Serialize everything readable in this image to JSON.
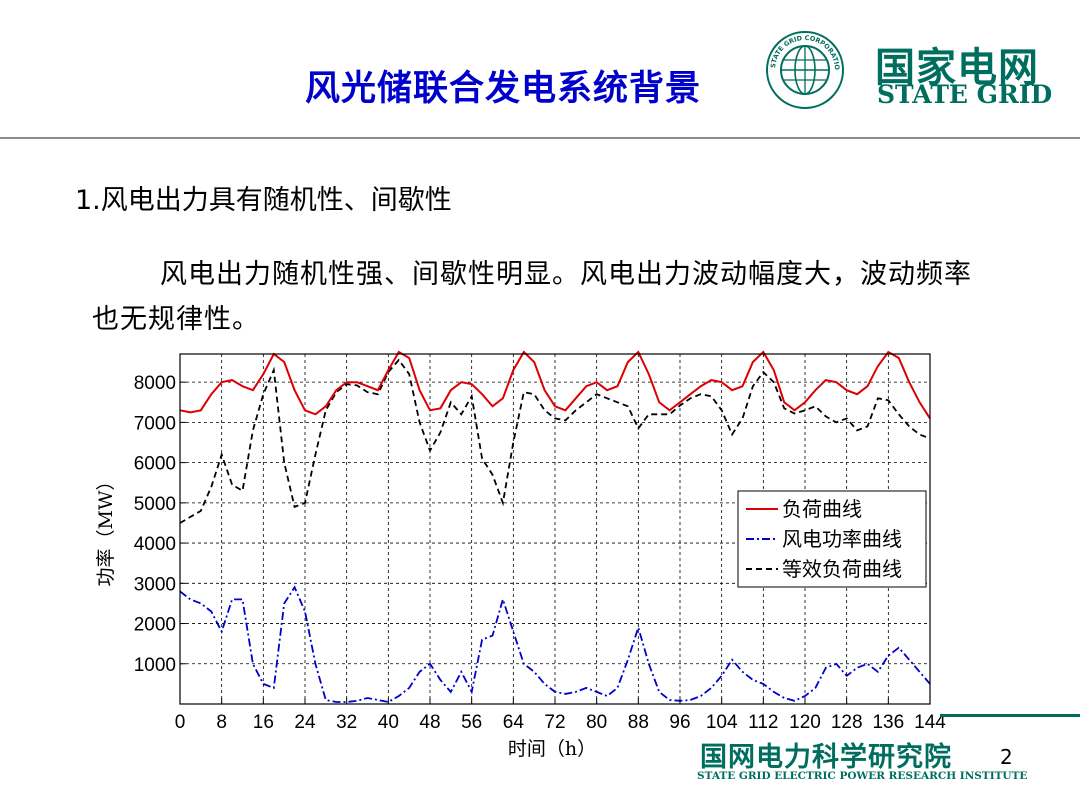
{
  "slide": {
    "title": "风光储联合发电系统背景",
    "heading": "1.风电出力具有随机性、间歇性",
    "paragraph": "风电出力随机性强、间歇性明显。风电出力波动幅度大，波动频率也无规律性。",
    "page_number": "2"
  },
  "logo": {
    "name_cn": "国家电网",
    "name_en": "STATE GRID",
    "seal_text": "STATE GRID CORPORATION OF CHINA",
    "brand_color": "#006e5f"
  },
  "footer": {
    "institute_cn": "国网电力科学研究院",
    "institute_en": "STATE GRID ELECTRIC POWER RESEARCH INSTITUTE"
  },
  "chart_data": {
    "type": "line",
    "xlabel": "时间（h）",
    "ylabel": "功率（MW）",
    "xlim": [
      0,
      144
    ],
    "ylim": [
      0,
      8000
    ],
    "xticks": [
      0,
      8,
      16,
      24,
      32,
      40,
      48,
      56,
      64,
      72,
      80,
      88,
      96,
      104,
      112,
      120,
      128,
      136,
      144
    ],
    "yticks": [
      1000,
      2000,
      3000,
      4000,
      5000,
      6000,
      7000,
      8000
    ],
    "grid": true,
    "legend_position": "right",
    "series": [
      {
        "name": "负荷曲线",
        "color": "#dd0000",
        "style": "solid",
        "x": [
          0,
          2,
          4,
          6,
          8,
          10,
          12,
          14,
          16,
          18,
          20,
          22,
          24,
          26,
          28,
          30,
          32,
          34,
          36,
          38,
          40,
          42,
          44,
          46,
          48,
          50,
          52,
          54,
          56,
          58,
          60,
          62,
          64,
          66,
          68,
          70,
          72,
          74,
          76,
          78,
          80,
          82,
          84,
          86,
          88,
          90,
          92,
          94,
          96,
          98,
          100,
          102,
          104,
          106,
          108,
          110,
          112,
          114,
          116,
          118,
          120,
          122,
          124,
          126,
          128,
          130,
          132,
          134,
          136,
          138,
          140,
          142,
          144
        ],
        "values": [
          7300,
          7250,
          7300,
          7700,
          8000,
          8050,
          7900,
          7800,
          8200,
          8700,
          8500,
          7800,
          7300,
          7200,
          7400,
          7800,
          8000,
          8000,
          7900,
          7800,
          8300,
          8750,
          8600,
          7800,
          7300,
          7350,
          7800,
          8000,
          7950,
          7700,
          7400,
          7600,
          8300,
          8750,
          8500,
          7800,
          7400,
          7300,
          7600,
          7900,
          8000,
          7800,
          7900,
          8500,
          8750,
          8200,
          7500,
          7300,
          7500,
          7700,
          7900,
          8050,
          8000,
          7800,
          7900,
          8500,
          8750,
          8300,
          7500,
          7300,
          7500,
          7800,
          8050,
          8000,
          7800,
          7700,
          7900,
          8400,
          8750,
          8600,
          8000,
          7500,
          7100
        ]
      },
      {
        "name": "风电功率曲线",
        "color": "#0000cc",
        "style": "dash-dot",
        "x": [
          0,
          2,
          4,
          6,
          8,
          10,
          12,
          14,
          16,
          18,
          20,
          22,
          24,
          26,
          28,
          30,
          32,
          34,
          36,
          38,
          40,
          42,
          44,
          46,
          48,
          50,
          52,
          54,
          56,
          58,
          60,
          62,
          64,
          66,
          68,
          70,
          72,
          74,
          76,
          78,
          80,
          82,
          84,
          86,
          88,
          90,
          92,
          94,
          96,
          98,
          100,
          102,
          104,
          106,
          108,
          110,
          112,
          114,
          116,
          118,
          120,
          122,
          124,
          126,
          128,
          130,
          132,
          134,
          136,
          138,
          140,
          142,
          144
        ],
        "values": [
          2800,
          2600,
          2500,
          2300,
          1800,
          2600,
          2600,
          1000,
          500,
          400,
          2500,
          2900,
          2300,
          1000,
          100,
          50,
          50,
          80,
          150,
          100,
          50,
          200,
          400,
          800,
          1000,
          600,
          300,
          800,
          300,
          1600,
          1700,
          2600,
          1800,
          1000,
          800,
          500,
          300,
          250,
          300,
          400,
          300,
          200,
          400,
          1100,
          1900,
          1000,
          300,
          100,
          80,
          100,
          200,
          400,
          700,
          1100,
          800,
          600,
          500,
          300,
          150,
          80,
          200,
          400,
          900,
          1000,
          700,
          900,
          1000,
          800,
          1200,
          1400,
          1100,
          800,
          500
        ]
      },
      {
        "name": "等效负荷曲线",
        "color": "#000000",
        "style": "dashed",
        "x": [
          0,
          2,
          4,
          6,
          8,
          10,
          12,
          14,
          16,
          18,
          20,
          22,
          24,
          26,
          28,
          30,
          32,
          34,
          36,
          38,
          40,
          42,
          44,
          46,
          48,
          50,
          52,
          54,
          56,
          58,
          60,
          62,
          64,
          66,
          68,
          70,
          72,
          74,
          76,
          78,
          80,
          82,
          84,
          86,
          88,
          90,
          92,
          94,
          96,
          98,
          100,
          102,
          104,
          106,
          108,
          110,
          112,
          114,
          116,
          118,
          120,
          122,
          124,
          126,
          128,
          130,
          132,
          134,
          136,
          138,
          140,
          142,
          144
        ],
        "values": [
          4500,
          4650,
          4800,
          5400,
          6200,
          5450,
          5300,
          6800,
          7700,
          8300,
          6000,
          4900,
          5000,
          6200,
          7300,
          7750,
          7950,
          7920,
          7750,
          7700,
          8250,
          8550,
          8200,
          7000,
          6300,
          6750,
          7500,
          7200,
          7650,
          6100,
          5700,
          5000,
          6500,
          7750,
          7700,
          7300,
          7100,
          7050,
          7300,
          7500,
          7700,
          7600,
          7500,
          7400,
          6850,
          7200,
          7200,
          7200,
          7420,
          7600,
          7700,
          7650,
          7300,
          6700,
          7100,
          7900,
          8250,
          8000,
          7350,
          7220,
          7300,
          7400,
          7150,
          7000,
          7100,
          6800,
          6900,
          7600,
          7550,
          7200,
          6900,
          6700,
          6600
        ]
      }
    ]
  }
}
